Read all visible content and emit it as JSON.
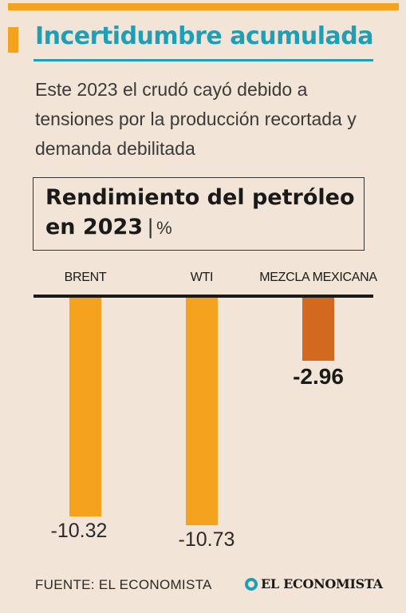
{
  "header": {
    "title": "Incertidumbre acumulada",
    "subtitle": "Este 2023 el crudó cayó debido a tensiones por la producción recortada y demanda debilitada"
  },
  "colors": {
    "accent": "#f5a21e",
    "title_blue": "#1f9fb6",
    "highlight_bar": "#d2691e",
    "background": "#f2e4d6"
  },
  "chart_data": {
    "type": "bar",
    "title": "Rendimiento del petróleo en 2023",
    "unit": "%",
    "categories": [
      "BRENT",
      "WTI",
      "MEZCLA MEXICANA"
    ],
    "values": [
      -10.32,
      -10.73,
      -2.96
    ],
    "value_labels": [
      "-10.32",
      "-10.73",
      "-2.96"
    ],
    "ylim": [
      -11.3,
      0
    ],
    "grid": false,
    "bar_colors": [
      "#f5a21e",
      "#f5a21e",
      "#d2691e"
    ]
  },
  "footer": {
    "source": "FUENTE: EL ECONOMISTA",
    "logo_text": "EL ECONOMISTA",
    "logo_icon": "el-economista-icon"
  }
}
